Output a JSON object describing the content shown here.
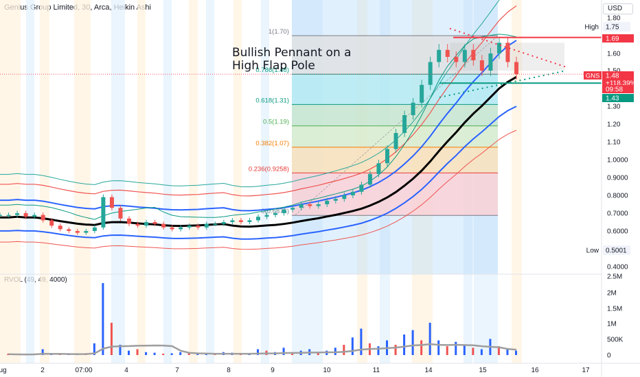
{
  "header": {
    "title": "Genius Group Limited, 30, Arca, Heikin Ashi",
    "currency": "USD"
  },
  "indicator": {
    "label": "RVOL (49, 49, 4000)"
  },
  "annotation": {
    "line1": "Bullish Pennant on a",
    "line2": "High Flap Pole"
  },
  "colors": {
    "up": "#26a69a",
    "down": "#ef5350",
    "fib_red": "#e53935",
    "fib_teal": "#089981",
    "blue_band": "#2962ff",
    "black_line": "#000000",
    "vol_blue": "#2962ff",
    "vol_red": "#ef5350"
  },
  "chart_data": {
    "type": "line",
    "x_labels": [
      "ug",
      "2",
      "07:00",
      "4",
      "7",
      "8",
      "9",
      "10",
      "11",
      "14",
      "15",
      "16",
      "17"
    ],
    "y_ticks": [
      "1.80",
      "1.75",
      "1.60",
      "1.50",
      "1.40",
      "1.30",
      "1.20",
      "1.10",
      "1.0000",
      "0.9000",
      "0.8000",
      "0.7000",
      "0.6000",
      "0.4000"
    ],
    "y_ticks_volume": [
      "2.5M",
      "2M",
      "1.5M",
      "1M",
      "500K",
      "0"
    ],
    "fib_levels": [
      {
        "label": "1(1.70)",
        "value": 1.7,
        "color": "#787b86"
      },
      {
        "label": "0.786(1.48)",
        "value": 1.48,
        "color": "#089981"
      },
      {
        "label": "0.618(1.31)",
        "value": 1.31,
        "color": "#089981"
      },
      {
        "label": "0.5(1.19)",
        "value": 1.19,
        "color": "#4caf50"
      },
      {
        "label": "0.382(1.07)",
        "value": 1.07,
        "color": "#f57c00"
      },
      {
        "label": "0.236(0.9258)",
        "value": 0.9258,
        "color": "#e53935"
      },
      {
        "label": "0(0.6876)",
        "value": 0.6876,
        "color": "#787b86"
      }
    ],
    "price_tags": [
      {
        "label": "High",
        "value": "1.75",
        "color": "#ffffff",
        "text_color": "#131722"
      },
      {
        "label": "",
        "value": "1.69",
        "color": "#f23645",
        "text_color": "#ffffff"
      },
      {
        "label": "GNS",
        "value": "1.48",
        "color": "#f23645",
        "text_color": "#ffffff"
      },
      {
        "label": "",
        "value": "+118.39%",
        "color": "#f23645",
        "text_color": "#ffffff"
      },
      {
        "label": "",
        "value": "09:58",
        "color": "#f23645",
        "text_color": "#ffffff"
      },
      {
        "label": "",
        "value": "1.43",
        "color": "#089981",
        "text_color": "#ffffff"
      },
      {
        "label": "Low",
        "value": "0.5001",
        "color": "#ffffff",
        "text_color": "#131722"
      }
    ],
    "series": [
      {
        "type": "candles",
        "values": [
          0.69,
          0.69,
          0.7,
          0.68,
          0.69,
          0.66,
          0.63,
          0.61,
          0.6,
          0.59,
          0.6,
          0.62,
          0.79,
          0.73,
          0.67,
          0.64,
          0.63,
          0.65,
          0.64,
          0.62,
          0.61,
          0.62,
          0.63,
          0.62,
          0.64,
          0.64,
          0.65,
          0.66,
          0.65,
          0.66,
          0.68,
          0.69,
          0.7,
          0.72,
          0.73,
          0.75,
          0.74,
          0.75,
          0.77,
          0.78,
          0.8,
          0.82,
          0.86,
          0.92,
          0.98,
          1.06,
          1.15,
          1.25,
          1.32,
          1.42,
          1.55,
          1.62,
          1.58,
          1.55,
          1.62,
          1.56,
          1.5,
          1.6,
          1.66,
          1.55,
          1.48
        ]
      }
    ],
    "volume_m": [
      0.05,
      0.03,
      0.03,
      0.05,
      0.2,
      0.05,
      0.04,
      0.02,
      0.03,
      0.06,
      0.4,
      2.45,
      1.1,
      0.35,
      0.15,
      0.2,
      0.1,
      0.08,
      0.05,
      0.06,
      0.1,
      0.07,
      0.08,
      0.06,
      0.05,
      0.1,
      0.08,
      0.06,
      0.05,
      0.2,
      0.15,
      0.1,
      0.25,
      0.1,
      0.15,
      0.2,
      0.1,
      0.15,
      0.25,
      0.35,
      0.6,
      0.9,
      0.4,
      0.3,
      0.5,
      0.35,
      0.7,
      0.85,
      0.5,
      1.1,
      0.5,
      0.3,
      0.45,
      0.35,
      0.25,
      0.2,
      0.55,
      0.3,
      0.2,
      0.15
    ]
  }
}
